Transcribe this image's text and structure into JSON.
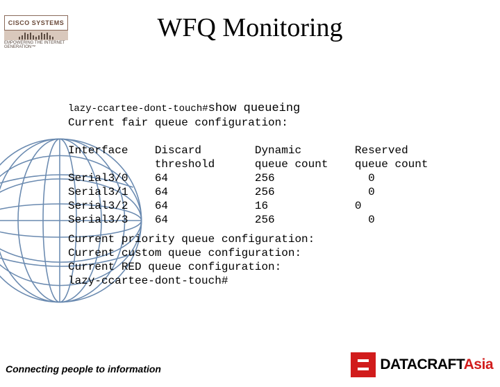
{
  "logo": {
    "top_text": "CISCO SYSTEMS",
    "sub_text": "EMPOWERING THE\nINTERNET GENERATION™"
  },
  "title": "WFQ Monitoring",
  "terminal": {
    "prompt": "lazy-ccartee-dont-touch#",
    "command": "show queueing",
    "heading_line": "Current fair queue configuration:",
    "table": {
      "columns": [
        "Interface",
        "Discard\nthreshold",
        "Dynamic\nqueue count",
        "Reserved\nqueue count"
      ],
      "rows": [
        [
          "Serial3/0",
          "64",
          "256",
          "  0"
        ],
        [
          "Serial3/1",
          "64",
          "256",
          "  0"
        ],
        [
          "Serial3/2",
          "64",
          "16",
          "0"
        ],
        [
          "Serial3/3",
          "64",
          "256",
          "  0"
        ]
      ]
    },
    "footer_lines": [
      "Current priority queue configuration:",
      "Current custom queue configuration:",
      "Current RED queue configuration:",
      "lazy-ccartee-dont-touch#"
    ]
  },
  "globe": {
    "stroke": "#6a8ab0",
    "stroke_width": 1.3
  },
  "tagline": "Connecting people to information",
  "datacraft": {
    "main": "DATACRAFT",
    "asia": "Asia",
    "red": "#d11c1c"
  }
}
